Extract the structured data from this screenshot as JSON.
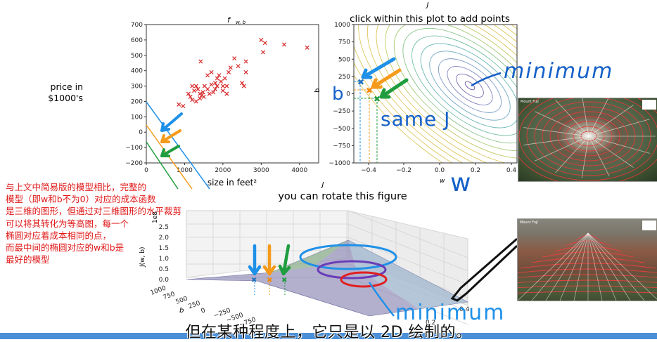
{
  "plot1": {
    "title": "f",
    "title_sub": "w, b",
    "ylabel_line1": "price in",
    "ylabel_line2": "$1000's",
    "xlabel": "size in feet²",
    "y_ticks": [
      "700",
      "600",
      "500",
      "400",
      "300",
      "200",
      "100",
      "0",
      "−100",
      "−200"
    ],
    "x_ticks": [
      "0",
      "1000",
      "2000",
      "3000",
      "4000"
    ]
  },
  "plot2": {
    "title": "J",
    "subtitle": "click within this plot to add points",
    "ylabel": "b",
    "xlabel": "w",
    "y_ticks": [
      "1000",
      "750",
      "500",
      "250",
      "0",
      "−250",
      "−500",
      "−750",
      "−1000"
    ],
    "x_ticks": [
      "−0.4",
      "−0.2",
      "0.0",
      "0.2",
      "0.4"
    ],
    "annotation_minimum": "minimum",
    "annotation_b": "b",
    "annotation_same_j": "same J",
    "annotation_w": "w"
  },
  "plot3": {
    "title": "J",
    "subtitle": "you can rotate this figure",
    "zlabel": "J(w, b)",
    "z_exp": "1e8",
    "z_ticks": [
      "2.5",
      "2.0",
      "1.5",
      "1.0",
      "0.5",
      "0.0"
    ],
    "b_ticks": [
      "1000",
      "750",
      "500",
      "250",
      "0",
      "−250",
      "−500",
      "−750"
    ],
    "b_label": "b",
    "w_ticks": [
      "0.4",
      "0.2"
    ],
    "annotation_minimum": "minimum"
  },
  "photos": {
    "top_caption": "Mount Fuji",
    "bottom_caption": "Mount Fuji"
  },
  "note_lines": [
    "与上文中简易版的模型相比，完整的",
    "模型（即w和b不为0）对应的成本函数",
    "是三维的图形，但通过对三维图形的水平裁剪",
    "可以将其转化为等高图，每一个",
    "椭圆对应着成本相同的点，",
    "而最中间的椭圆对应的w和b是",
    "最好的模型"
  ],
  "subtitle_text": "但在某种程度上，它只是以 2D 绘制的。",
  "colors": {
    "data_marker": "#d62728",
    "arrow_blue": "#1e90e8",
    "arrow_orange": "#f59a1a",
    "arrow_green": "#1f9d3f",
    "annotation_blue": "#1560c8",
    "note_red": "#e01818",
    "bottom_bar": "#4a8fd8"
  },
  "chart_data": [
    {
      "type": "scatter",
      "title": "f w,b",
      "xlabel": "size in feet²",
      "ylabel": "price in $1000's",
      "xlim": [
        0,
        4500
      ],
      "ylim": [
        -200,
        700
      ],
      "x": [
        850,
        960,
        1100,
        1150,
        1200,
        1200,
        1250,
        1300,
        1300,
        1350,
        1400,
        1400,
        1420,
        1450,
        1480,
        1500,
        1520,
        1600,
        1600,
        1650,
        1700,
        1700,
        1750,
        1800,
        1800,
        1850,
        1850,
        1900,
        1950,
        2000,
        2000,
        2050,
        2100,
        2100,
        2150,
        2200,
        2300,
        2400,
        2500,
        2550,
        2600,
        2600,
        3000,
        3050,
        3100,
        3600,
        4200
      ],
      "y": [
        180,
        170,
        250,
        230,
        300,
        210,
        270,
        200,
        300,
        280,
        220,
        250,
        460,
        240,
        260,
        230,
        300,
        370,
        280,
        250,
        390,
        310,
        260,
        320,
        280,
        300,
        350,
        370,
        330,
        300,
        270,
        350,
        300,
        250,
        390,
        420,
        480,
        430,
        320,
        300,
        460,
        390,
        600,
        520,
        580,
        570,
        550
      ]
    },
    {
      "type": "contour",
      "title": "J",
      "xlabel": "w",
      "ylabel": "b",
      "xlim": [
        -0.5,
        0.45
      ],
      "ylim": [
        -1000,
        1000
      ]
    },
    {
      "type": "surface",
      "title": "J",
      "zlabel": "J(w, b)",
      "zlim": [
        0,
        2.5
      ]
    }
  ]
}
